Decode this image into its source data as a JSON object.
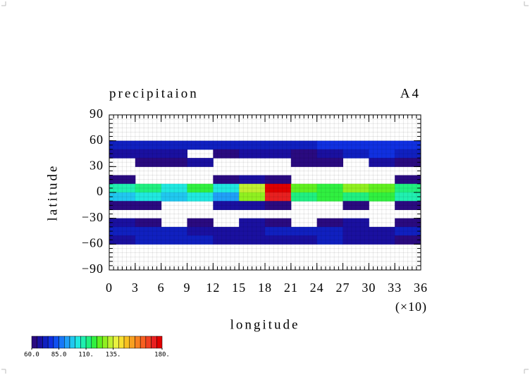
{
  "chart_data": {
    "type": "heatmap",
    "title": "precipitaion",
    "subtitle": "A4",
    "x_label": "longitude",
    "x_multiplier": "(×10)",
    "y_label": "latitude",
    "xlim": [
      0,
      36
    ],
    "xticks": [
      0,
      3,
      6,
      9,
      12,
      15,
      18,
      21,
      24,
      27,
      30,
      33,
      36
    ],
    "ylim": [
      -90,
      90
    ],
    "yticks": [
      {
        "value": -90,
        "label": "−90"
      },
      {
        "value": -60,
        "label": "−60"
      },
      {
        "value": -30,
        "label": "−30"
      },
      0,
      30,
      60,
      90
    ],
    "z": [
      [
        null,
        null,
        null,
        null,
        null,
        null,
        null,
        null,
        null,
        null,
        null,
        null
      ],
      [
        null,
        null,
        null,
        null,
        null,
        null,
        null,
        null,
        null,
        null,
        null,
        null
      ],
      [
        null,
        null,
        null,
        null,
        null,
        null,
        null,
        null,
        null,
        null,
        null,
        null
      ],
      [
        72,
        72,
        70,
        70,
        70,
        72,
        70,
        70,
        75,
        75,
        78,
        75
      ],
      [
        68,
        66,
        65,
        null,
        64,
        66,
        65,
        64,
        68,
        72,
        75,
        70
      ],
      [
        null,
        62,
        64,
        66,
        null,
        null,
        null,
        64,
        62,
        null,
        66,
        64
      ],
      [
        null,
        null,
        null,
        null,
        null,
        null,
        null,
        null,
        null,
        null,
        null,
        null
      ],
      [
        62,
        null,
        null,
        null,
        62,
        65,
        64,
        null,
        null,
        null,
        null,
        62
      ],
      [
        105,
        110,
        100,
        115,
        100,
        130,
        175,
        120,
        115,
        125,
        120,
        110
      ],
      [
        95,
        100,
        95,
        100,
        90,
        125,
        170,
        110,
        115,
        110,
        115,
        105
      ],
      [
        64,
        62,
        null,
        null,
        65,
        68,
        64,
        null,
        null,
        62,
        null,
        64
      ],
      [
        null,
        null,
        null,
        null,
        null,
        null,
        null,
        null,
        null,
        null,
        null,
        null
      ],
      [
        66,
        64,
        null,
        62,
        null,
        66,
        64,
        null,
        64,
        66,
        null,
        64
      ],
      [
        72,
        74,
        70,
        68,
        66,
        68,
        70,
        70,
        72,
        68,
        68,
        70
      ],
      [
        66,
        70,
        70,
        70,
        68,
        66,
        68,
        68,
        70,
        66,
        66,
        64
      ],
      [
        null,
        null,
        null,
        null,
        null,
        null,
        null,
        null,
        null,
        null,
        null,
        null
      ],
      [
        null,
        null,
        null,
        null,
        null,
        null,
        null,
        null,
        null,
        null,
        null,
        null
      ],
      [
        null,
        null,
        null,
        null,
        null,
        null,
        null,
        null,
        null,
        null,
        null,
        null
      ]
    ],
    "clim": [
      60,
      180
    ],
    "cticks": [
      {
        "value": 60,
        "label": "60.0"
      },
      {
        "value": 85,
        "label": "85.0"
      },
      {
        "value": 110,
        "label": "110."
      },
      {
        "value": 135,
        "label": "135."
      },
      {
        "value": 180,
        "label": "180."
      }
    ],
    "colors": [
      "#2a0a80",
      "#1a10a0",
      "#1020c0",
      "#1030e0",
      "#1050f0",
      "#1878f8",
      "#20a0f8",
      "#20c8f0",
      "#20e8e0",
      "#20f0b0",
      "#20f080",
      "#30f040",
      "#60f020",
      "#90f020",
      "#c0f030",
      "#e8f040",
      "#f8e030",
      "#f8c020",
      "#f8a020",
      "#f88020",
      "#f86020",
      "#f04020",
      "#e82020",
      "#e00000"
    ],
    "grid": true
  }
}
